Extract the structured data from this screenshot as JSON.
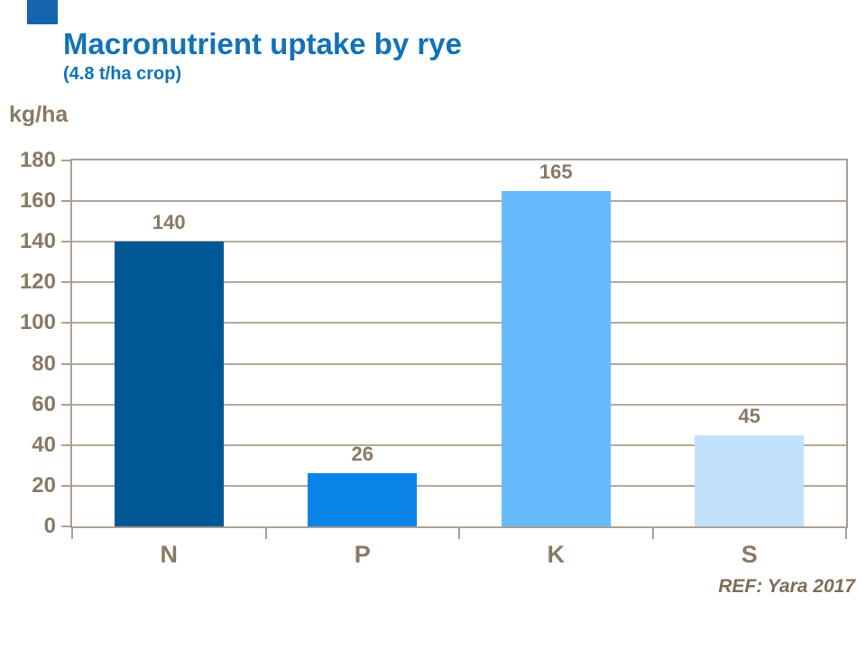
{
  "slide": {
    "title": "Macronutrient uptake by rye",
    "subtitle": "(4.8 t/ha crop)",
    "reference": "REF: Yara 2017"
  },
  "colors": {
    "title_blue": "#1272B9",
    "text_brown": "#8A7A64",
    "gridline": "#B3AA9C",
    "frame": "#ABA193",
    "reference_text": "#7E6D58",
    "corner_mark": "#1565AE",
    "bar_colors": [
      "#005796",
      "#0A84E8",
      "#66BBFD",
      "#C2E1FA"
    ]
  },
  "chart_data": {
    "type": "bar",
    "title": "Macronutrient uptake by rye",
    "subtitle": "(4.8 t/ha crop)",
    "unit_label": "kg/ha",
    "categories": [
      "N",
      "P",
      "K",
      "S"
    ],
    "values": [
      140,
      26,
      165,
      45
    ],
    "data_labels": [
      "140",
      "26",
      "165",
      "45"
    ],
    "ylim": [
      0,
      180
    ],
    "yticks": [
      0,
      20,
      40,
      60,
      80,
      100,
      120,
      140,
      160,
      180
    ],
    "grid": true,
    "legend_position": "none",
    "annotation": "REF: Yara 2017"
  }
}
